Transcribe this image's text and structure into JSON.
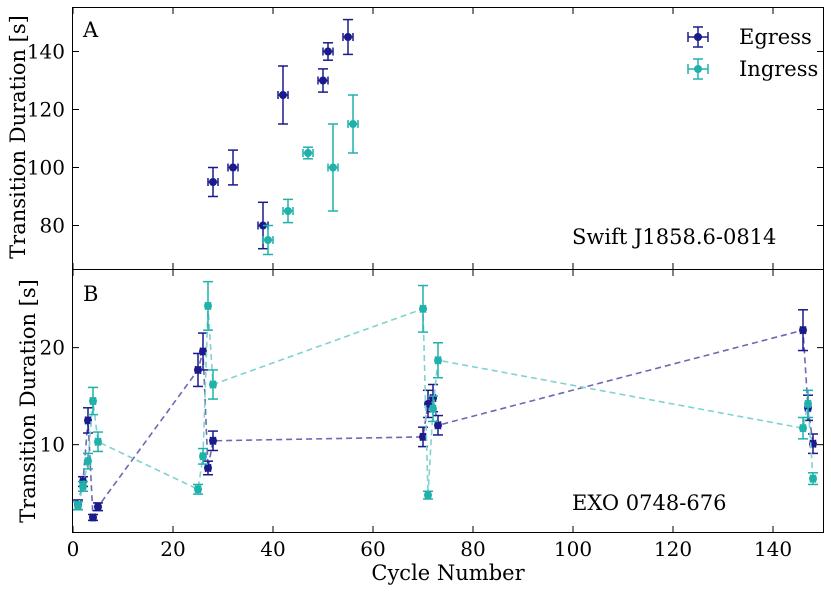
{
  "colors": {
    "egress": "#1a1a8c",
    "ingress": "#20b2aa",
    "egress_line": "#6a6ab4",
    "ingress_line": "#7fd3d0"
  },
  "chart_data": [
    {
      "type": "scatter",
      "panel_label": "A",
      "annotation": "Swift J1858.6-0814",
      "ylabel": "Transition Duration [s]",
      "xlabel": "",
      "xlim": [
        0,
        150
      ],
      "ylim": [
        65,
        155
      ],
      "yticks": [
        80,
        100,
        120,
        140
      ],
      "legend": {
        "position": "top-right",
        "entries": [
          "Egress",
          "Ingress"
        ]
      },
      "series": [
        {
          "name": "Egress",
          "connect": false,
          "points": [
            {
              "x": 28,
              "y": 95,
              "yerr": 5,
              "xerr": 1
            },
            {
              "x": 32,
              "y": 100,
              "yerr": 6,
              "xerr": 1
            },
            {
              "x": 38,
              "y": 80,
              "yerr": 8,
              "xerr": 1
            },
            {
              "x": 42,
              "y": 125,
              "yerr": 10,
              "xerr": 1
            },
            {
              "x": 50,
              "y": 130,
              "yerr": 4,
              "xerr": 1
            },
            {
              "x": 51,
              "y": 140,
              "yerr": 3,
              "xerr": 1
            },
            {
              "x": 55,
              "y": 145,
              "yerr": 6,
              "xerr": 1
            }
          ]
        },
        {
          "name": "Ingress",
          "connect": false,
          "points": [
            {
              "x": 39,
              "y": 75,
              "yerr": 5,
              "xerr": 1
            },
            {
              "x": 43,
              "y": 85,
              "yerr": 4,
              "xerr": 1
            },
            {
              "x": 47,
              "y": 105,
              "yerr": 2,
              "xerr": 1
            },
            {
              "x": 52,
              "y": 100,
              "yerr": 15,
              "xerr": 1
            },
            {
              "x": 56,
              "y": 115,
              "yerr": 10,
              "xerr": 1
            }
          ]
        }
      ]
    },
    {
      "type": "line",
      "panel_label": "B",
      "annotation": "EXO 0748-676",
      "ylabel": "Transition Duration [s]",
      "xlabel": "Cycle Number",
      "xlim": [
        0,
        150
      ],
      "ylim": [
        1,
        28
      ],
      "xticks": [
        0,
        20,
        40,
        60,
        80,
        100,
        120,
        140
      ],
      "yticks": [
        10,
        20
      ],
      "series": [
        {
          "name": "Egress",
          "connect": true,
          "points": [
            {
              "x": 1,
              "y": 3.8,
              "yerr": 0.5,
              "xerr": 0.5
            },
            {
              "x": 2,
              "y": 6.2,
              "yerr": 0.5,
              "xerr": 0.5
            },
            {
              "x": 3,
              "y": 12.5,
              "yerr": 1.3,
              "xerr": 0.5
            },
            {
              "x": 4,
              "y": 2.5,
              "yerr": 0.3,
              "xerr": 0.5
            },
            {
              "x": 5,
              "y": 3.6,
              "yerr": 0.4,
              "xerr": 0.5
            },
            {
              "x": 25,
              "y": 17.7,
              "yerr": 1.7,
              "xerr": 0.5
            },
            {
              "x": 26,
              "y": 19.6,
              "yerr": 1.9,
              "xerr": 0.5
            },
            {
              "x": 27,
              "y": 7.6,
              "yerr": 0.7,
              "xerr": 0.5
            },
            {
              "x": 28,
              "y": 10.4,
              "yerr": 1.0,
              "xerr": 0.5
            },
            {
              "x": 70,
              "y": 10.8,
              "yerr": 1.0,
              "xerr": 0.5
            },
            {
              "x": 71,
              "y": 14.2,
              "yerr": 1.4,
              "xerr": 0.5
            },
            {
              "x": 72,
              "y": 14.8,
              "yerr": 1.4,
              "xerr": 0.5
            },
            {
              "x": 73,
              "y": 12.0,
              "yerr": 1.0,
              "xerr": 0.5
            },
            {
              "x": 146,
              "y": 21.8,
              "yerr": 2.1,
              "xerr": 0.5
            },
            {
              "x": 147,
              "y": 13.8,
              "yerr": 1.3,
              "xerr": 0.5
            },
            {
              "x": 148,
              "y": 10.1,
              "yerr": 1.0,
              "xerr": 0.5
            }
          ]
        },
        {
          "name": "Ingress",
          "connect": true,
          "points": [
            {
              "x": 1,
              "y": 3.7,
              "yerr": 0.4,
              "xerr": 0.5
            },
            {
              "x": 2,
              "y": 5.7,
              "yerr": 0.5,
              "xerr": 0.5
            },
            {
              "x": 3,
              "y": 8.3,
              "yerr": 0.8,
              "xerr": 0.5
            },
            {
              "x": 4,
              "y": 14.5,
              "yerr": 1.4,
              "xerr": 0.5
            },
            {
              "x": 5,
              "y": 10.3,
              "yerr": 1.0,
              "xerr": 0.5
            },
            {
              "x": 25,
              "y": 5.4,
              "yerr": 0.5,
              "xerr": 0.5
            },
            {
              "x": 26,
              "y": 8.8,
              "yerr": 0.8,
              "xerr": 0.5
            },
            {
              "x": 27,
              "y": 24.3,
              "yerr": 2.5,
              "xerr": 0.5
            },
            {
              "x": 28,
              "y": 16.2,
              "yerr": 1.5,
              "xerr": 0.5
            },
            {
              "x": 70,
              "y": 24.0,
              "yerr": 2.4,
              "xerr": 0.5
            },
            {
              "x": 71,
              "y": 4.8,
              "yerr": 0.4,
              "xerr": 0.5
            },
            {
              "x": 72,
              "y": 13.7,
              "yerr": 1.3,
              "xerr": 0.5
            },
            {
              "x": 73,
              "y": 18.7,
              "yerr": 1.8,
              "xerr": 0.5
            },
            {
              "x": 146,
              "y": 11.7,
              "yerr": 1.1,
              "xerr": 0.5
            },
            {
              "x": 147,
              "y": 14.2,
              "yerr": 1.4,
              "xerr": 0.5
            },
            {
              "x": 148,
              "y": 6.5,
              "yerr": 0.6,
              "xerr": 0.5
            }
          ]
        }
      ]
    }
  ]
}
